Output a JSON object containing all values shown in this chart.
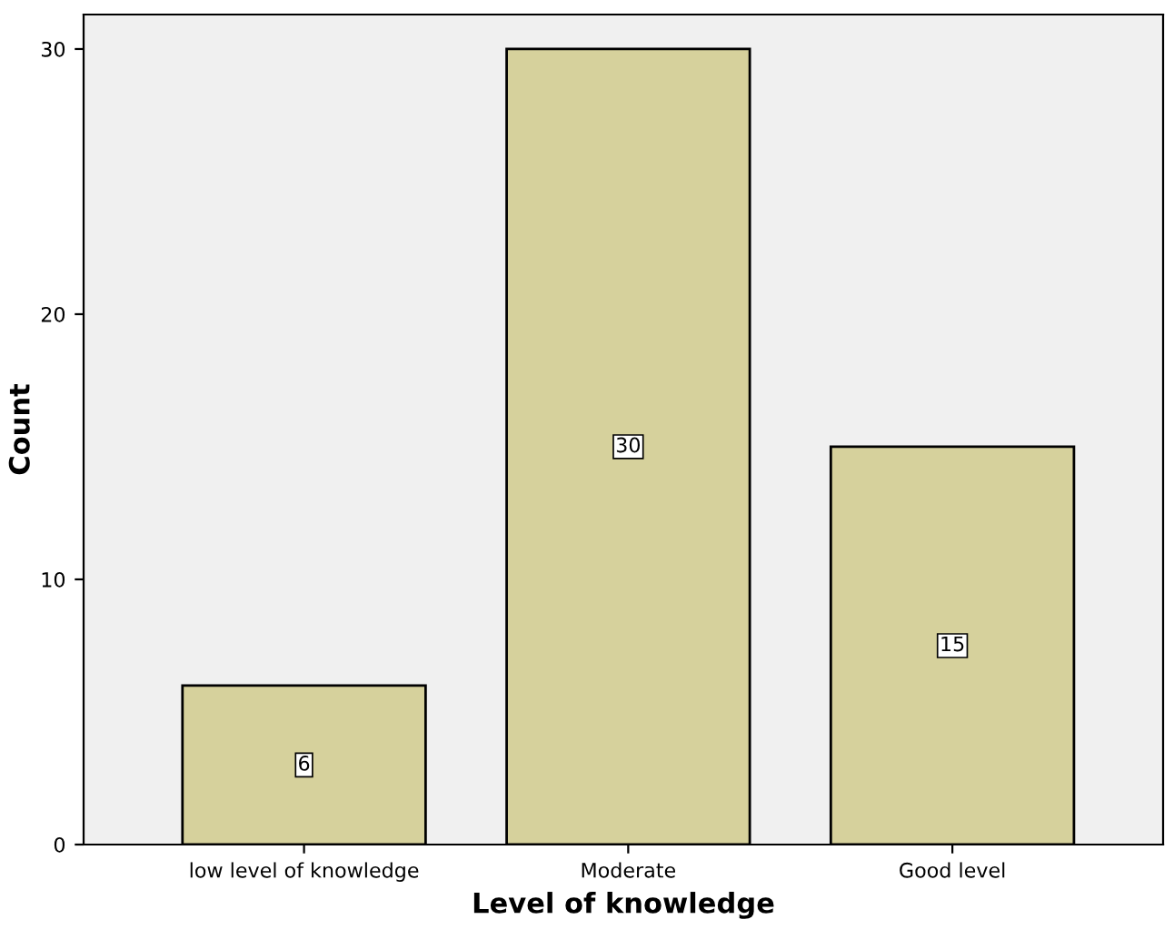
{
  "chart_data": {
    "type": "bar",
    "xlabel": "Level of knowledge",
    "ylabel": "Count",
    "categories": [
      "low level of knowledge",
      "Moderate",
      "Good level"
    ],
    "values": [
      6,
      30,
      15
    ],
    "color": "#d6d19c",
    "ylim": [
      0,
      31.3
    ],
    "yticks": [
      0,
      10,
      20,
      30
    ],
    "grid": false,
    "data_labels": true
  }
}
